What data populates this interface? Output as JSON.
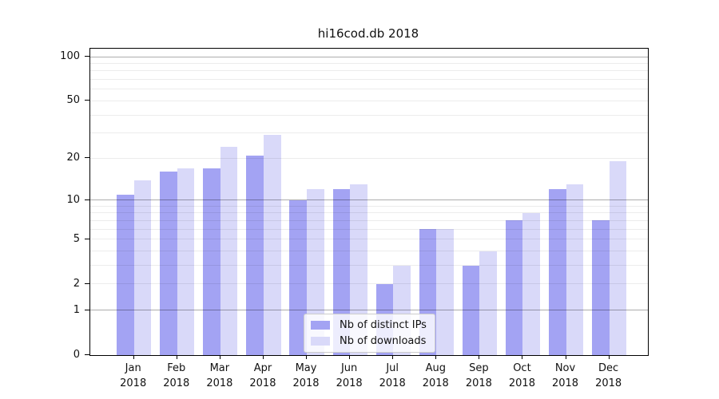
{
  "chart_data": {
    "type": "bar",
    "title": "hi16cod.db 2018",
    "categories": [
      "Jan",
      "Feb",
      "Mar",
      "Apr",
      "May",
      "Jun",
      "Jul",
      "Aug",
      "Sep",
      "Oct",
      "Nov",
      "Dec"
    ],
    "year_label": "2018",
    "series": [
      {
        "name": "Nb of distinct IPs",
        "color": "#a3a3f3",
        "values": [
          11,
          16,
          17,
          21,
          10,
          12,
          2,
          6,
          3,
          7,
          12,
          7
        ]
      },
      {
        "name": "Nb of downloads",
        "color": "#d9d9f9",
        "values": [
          14,
          17,
          24,
          29,
          12,
          13,
          3,
          6,
          4,
          8,
          13,
          19
        ]
      }
    ],
    "yscale": "log1p",
    "ylim": [
      0,
      113
    ],
    "yticks": [
      0,
      1,
      2,
      5,
      10,
      20,
      50,
      100
    ],
    "major_gridlines": [
      1,
      10,
      100
    ],
    "minor_gridlines": [
      2,
      3,
      4,
      5,
      6,
      7,
      8,
      9,
      20,
      30,
      40,
      50,
      60,
      70,
      80,
      90
    ],
    "grid": true,
    "legend_position": "lower-center-inside"
  }
}
